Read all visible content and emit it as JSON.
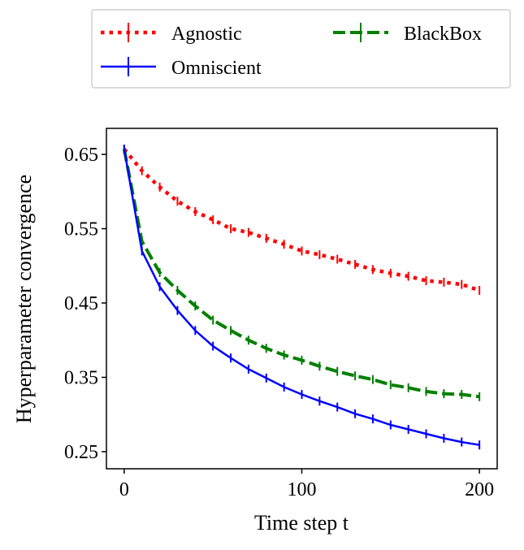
{
  "chart_data": {
    "type": "line",
    "xlabel": "Time step t",
    "ylabel": "Hyperparameter convergence",
    "xlim": [
      -10,
      210
    ],
    "ylim": [
      0.227,
      0.685
    ],
    "xticks": [
      0,
      100,
      200
    ],
    "xtick_labels": [
      "0",
      "100",
      "200"
    ],
    "yticks": [
      0.25,
      0.35,
      0.45,
      0.55,
      0.65
    ],
    "ytick_labels": [
      "0.25",
      "0.35",
      "0.45",
      "0.55",
      "0.65"
    ],
    "grid": false,
    "legend_placement": "top, outside the plot, 2 columns",
    "x": [
      0,
      10,
      20,
      30,
      40,
      50,
      60,
      70,
      80,
      90,
      100,
      110,
      120,
      130,
      140,
      150,
      160,
      170,
      180,
      190,
      200
    ],
    "series": [
      {
        "name": "Agnostic",
        "color": "#ff0000",
        "style": "dotted",
        "err": 0.006,
        "values": [
          0.657,
          0.628,
          0.606,
          0.587,
          0.573,
          0.562,
          0.55,
          0.545,
          0.537,
          0.529,
          0.52,
          0.515,
          0.509,
          0.502,
          0.495,
          0.49,
          0.486,
          0.48,
          0.478,
          0.475,
          0.467
        ]
      },
      {
        "name": "BlackBox",
        "color": "#008000",
        "style": "dashed",
        "err": 0.006,
        "values": [
          0.657,
          0.533,
          0.491,
          0.467,
          0.446,
          0.427,
          0.413,
          0.4,
          0.389,
          0.38,
          0.373,
          0.365,
          0.358,
          0.352,
          0.347,
          0.34,
          0.336,
          0.331,
          0.328,
          0.327,
          0.324
        ]
      },
      {
        "name": "Omniscient",
        "color": "#0000ff",
        "style": "solid",
        "err": 0.006,
        "values": [
          0.657,
          0.52,
          0.472,
          0.44,
          0.413,
          0.392,
          0.376,
          0.361,
          0.349,
          0.337,
          0.327,
          0.318,
          0.31,
          0.301,
          0.294,
          0.286,
          0.28,
          0.274,
          0.268,
          0.263,
          0.259
        ]
      }
    ]
  }
}
